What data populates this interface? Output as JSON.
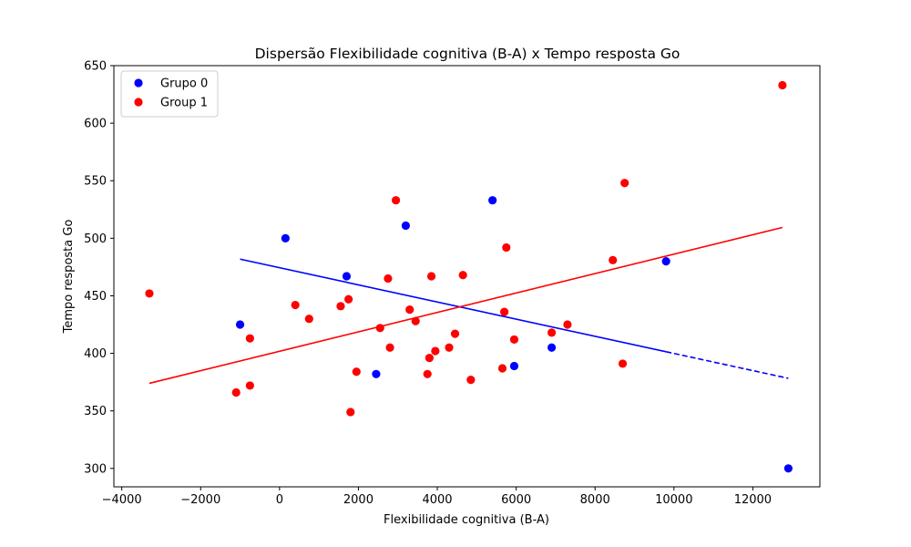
{
  "chart_data": {
    "type": "scatter",
    "title": "Dispersão Flexibilidade cognitiva (B-A) x Tempo resposta Go",
    "xlabel": "Flexibilidade cognitiva (B-A)",
    "ylabel": "Tempo resposta Go",
    "xlim": [
      -4200,
      13700
    ],
    "ylim": [
      284,
      650
    ],
    "xticks": [
      -4000,
      -2000,
      0,
      2000,
      4000,
      6000,
      8000,
      10000,
      12000
    ],
    "xtick_labels": [
      "−4000",
      "−2000",
      "0",
      "2000",
      "4000",
      "6000",
      "8000",
      "10000",
      "12000"
    ],
    "yticks": [
      300,
      350,
      400,
      450,
      500,
      550,
      600,
      650
    ],
    "ytick_labels": [
      "300",
      "350",
      "400",
      "450",
      "500",
      "550",
      "600",
      "650"
    ],
    "grid": false,
    "legend_position": "top-left",
    "series": [
      {
        "name": "Grupo 0",
        "color": "#0000ff",
        "points": [
          [
            -1000,
            425
          ],
          [
            150,
            500
          ],
          [
            1700,
            467
          ],
          [
            2450,
            382
          ],
          [
            3200,
            511
          ],
          [
            5400,
            533
          ],
          [
            5950,
            389
          ],
          [
            6900,
            405
          ],
          [
            9800,
            480
          ],
          [
            12900,
            300
          ]
        ],
        "trend": {
          "solid_x": [
            -1000,
            9800
          ],
          "dashed_x": [
            9800,
            12900
          ],
          "slope": -0.00745,
          "intercept": 474.4
        }
      },
      {
        "name": "Group 1",
        "color": "#ff0000",
        "points": [
          [
            -3300,
            452
          ],
          [
            -1100,
            366
          ],
          [
            -750,
            413
          ],
          [
            -750,
            372
          ],
          [
            400,
            442
          ],
          [
            750,
            430
          ],
          [
            1550,
            441
          ],
          [
            1750,
            447
          ],
          [
            1800,
            349
          ],
          [
            1950,
            384
          ],
          [
            2550,
            422
          ],
          [
            2750,
            465
          ],
          [
            2800,
            405
          ],
          [
            2950,
            533
          ],
          [
            3300,
            438
          ],
          [
            3450,
            428
          ],
          [
            3750,
            382
          ],
          [
            3800,
            396
          ],
          [
            3850,
            467
          ],
          [
            3950,
            402
          ],
          [
            4300,
            405
          ],
          [
            4450,
            417
          ],
          [
            4650,
            468
          ],
          [
            4850,
            377
          ],
          [
            5650,
            387
          ],
          [
            5700,
            436
          ],
          [
            5750,
            492
          ],
          [
            5950,
            412
          ],
          [
            6900,
            418
          ],
          [
            7300,
            425
          ],
          [
            8450,
            481
          ],
          [
            8700,
            391
          ],
          [
            8750,
            548
          ],
          [
            12750,
            633
          ]
        ],
        "trend": {
          "solid_x": [
            -3300,
            12750
          ],
          "slope": 0.008438,
          "intercept": 401.8
        }
      }
    ]
  }
}
